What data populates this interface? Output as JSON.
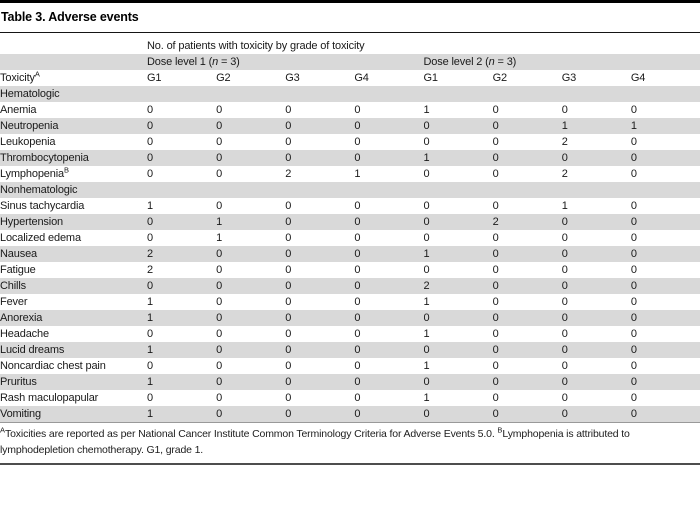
{
  "title": "Table 3. Adverse events",
  "colors": {
    "stripe": "#d9d9d9",
    "rule_top": "#000000",
    "rule_mid": "#999999",
    "rule_bottom": "#4d4d4d",
    "text": "#1a1a1a"
  },
  "table": {
    "group_header": "No. of patients with toxicity by grade of toxicity",
    "dose1": {
      "pre": "Dose level 1 (",
      "var": "n",
      "post": " = 3)"
    },
    "dose2": {
      "pre": "Dose level 2 (",
      "var": "n",
      "post": " = 3)"
    },
    "toxicity_header": {
      "label": "Toxicity",
      "sup": "A"
    },
    "grades": [
      "G1",
      "G2",
      "G3",
      "G4",
      "G1",
      "G2",
      "G3",
      "G4"
    ],
    "sections": [
      {
        "name": "Hematologic",
        "rows": [
          {
            "label": "Anemia",
            "values": [
              0,
              0,
              0,
              0,
              1,
              0,
              0,
              0
            ]
          },
          {
            "label": "Neutropenia",
            "values": [
              0,
              0,
              0,
              0,
              0,
              0,
              1,
              1
            ]
          },
          {
            "label": "Leukopenia",
            "values": [
              0,
              0,
              0,
              0,
              0,
              0,
              2,
              0
            ]
          },
          {
            "label": "Thrombocytopenia",
            "values": [
              0,
              0,
              0,
              0,
              1,
              0,
              0,
              0
            ]
          },
          {
            "label": "Lymphopenia",
            "sup": "B",
            "values": [
              0,
              0,
              2,
              1,
              0,
              0,
              2,
              0
            ]
          }
        ]
      },
      {
        "name": "Nonhematologic",
        "rows": [
          {
            "label": "Sinus tachycardia",
            "values": [
              1,
              0,
              0,
              0,
              0,
              0,
              1,
              0
            ]
          },
          {
            "label": "Hypertension",
            "values": [
              0,
              1,
              0,
              0,
              0,
              2,
              0,
              0
            ]
          },
          {
            "label": "Localized edema",
            "values": [
              0,
              1,
              0,
              0,
              0,
              0,
              0,
              0
            ]
          },
          {
            "label": "Nausea",
            "values": [
              2,
              0,
              0,
              0,
              1,
              0,
              0,
              0
            ]
          },
          {
            "label": "Fatigue",
            "values": [
              2,
              0,
              0,
              0,
              0,
              0,
              0,
              0
            ]
          },
          {
            "label": "Chills",
            "values": [
              0,
              0,
              0,
              0,
              2,
              0,
              0,
              0
            ]
          },
          {
            "label": "Fever",
            "values": [
              1,
              0,
              0,
              0,
              1,
              0,
              0,
              0
            ]
          },
          {
            "label": "Anorexia",
            "values": [
              1,
              0,
              0,
              0,
              0,
              0,
              0,
              0
            ]
          },
          {
            "label": "Headache",
            "values": [
              0,
              0,
              0,
              0,
              1,
              0,
              0,
              0
            ]
          },
          {
            "label": "Lucid dreams",
            "values": [
              1,
              0,
              0,
              0,
              0,
              0,
              0,
              0
            ]
          },
          {
            "label": "Noncardiac chest pain",
            "values": [
              0,
              0,
              0,
              0,
              1,
              0,
              0,
              0
            ]
          },
          {
            "label": "Pruritus",
            "values": [
              1,
              0,
              0,
              0,
              0,
              0,
              0,
              0
            ]
          },
          {
            "label": "Rash maculopapular",
            "values": [
              0,
              0,
              0,
              0,
              1,
              0,
              0,
              0
            ]
          },
          {
            "label": "Vomiting",
            "values": [
              1,
              0,
              0,
              0,
              0,
              0,
              0,
              0
            ]
          }
        ]
      }
    ]
  },
  "footnote": {
    "lines": [
      {
        "segments": [
          {
            "sup": "A"
          },
          {
            "text": "Toxicities are reported as per National Cancer Institute Common Terminology Criteria for Adverse Events 5.0. "
          },
          {
            "sup": "B"
          },
          {
            "text": "Lymphopenia is attributed to"
          }
        ]
      },
      {
        "segments": [
          {
            "text": "lymphodepletion chemotherapy. G1, grade 1."
          }
        ]
      }
    ]
  }
}
